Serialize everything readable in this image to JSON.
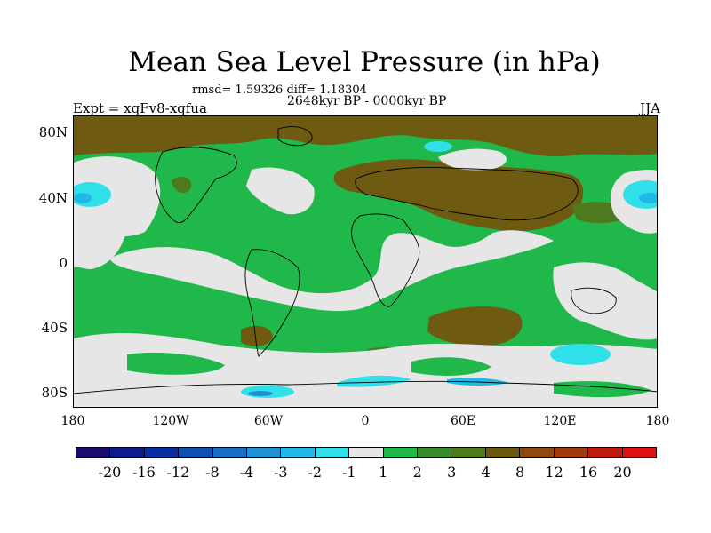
{
  "title": "Mean Sea Level Pressure (in hPa)",
  "stats": "rmsd= 1.59326 diff= 1.18304",
  "subtitle": "2648kyr BP - 0000kyr BP",
  "experiment": "Expt = xqFv8-xqfua",
  "season": "JJA",
  "axes": {
    "lat_labels": [
      "80N",
      "40N",
      "0",
      "40S",
      "80S"
    ],
    "lat_values": [
      80,
      40,
      0,
      -40,
      -80
    ],
    "lon_labels": [
      "180",
      "120W",
      "60W",
      "0",
      "60E",
      "120E",
      "180"
    ],
    "lon_values": [
      -180,
      -120,
      -60,
      0,
      60,
      120,
      180
    ]
  },
  "colorbar": {
    "colors": [
      "#1a0a6b",
      "#0c1a8c",
      "#0a2ea0",
      "#1050b0",
      "#1a6fc0",
      "#2090d0",
      "#20b8e6",
      "#30e0e8",
      "#e6e6e6",
      "#20b84a",
      "#3a8a30",
      "#4e7a1e",
      "#6a5a10",
      "#8a4a10",
      "#a03a10",
      "#c01a10",
      "#e01010"
    ],
    "labels": [
      "-20",
      "-16",
      "-12",
      "-8",
      "-4",
      "-3",
      "-2",
      "-1",
      "1",
      "2",
      "3",
      "4",
      "8",
      "12",
      "16",
      "20"
    ]
  },
  "map_colors": {
    "brown": "#6e5a10",
    "dark_green": "#4e7a1e",
    "green": "#20b84a",
    "light_gray": "#e6e6e6",
    "cyan": "#30e0e8",
    "light_blue": "#20b8e6",
    "blue": "#2090d0"
  }
}
